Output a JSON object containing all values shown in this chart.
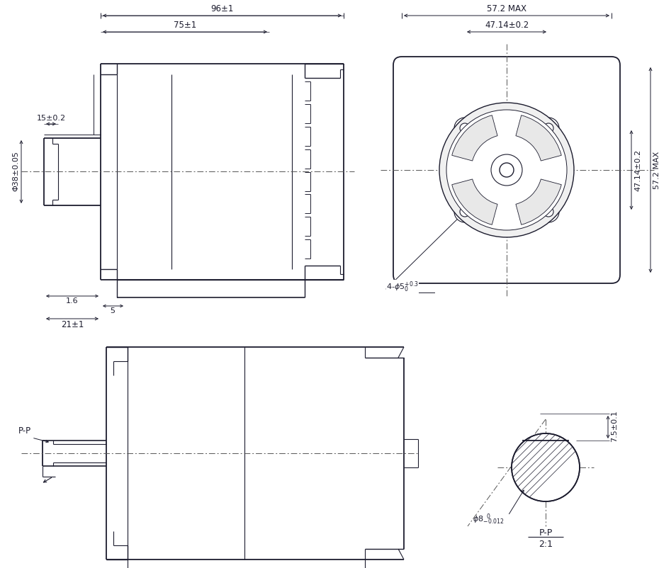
{
  "bg_color": "#ffffff",
  "lc": "#1c1c2e",
  "dc": "#1c1c2e",
  "figsize": [
    9.3,
    8.02
  ],
  "dpi": 100,
  "annotations": {
    "dim_96": "96±1",
    "dim_75": "75±1",
    "dim_15": "15±0.2",
    "dim_38": "Φ38±0.05",
    "dim_1_6": "1.6",
    "dim_5": "5",
    "dim_21": "21±1",
    "dim_57_2_max_h": "57.2 MAX",
    "dim_47_14_h": "47.14±0.2",
    "dim_47_14_v": "47.14±0.2",
    "dim_57_2_max_v": "57.2 MAX",
    "dim_4holes": "4-Φ5⁺⁰³⁰",
    "dim_pp_label": "P-P",
    "dim_pp_ratio": "P-P\n2:1",
    "dim_phi8": "Φ8₀⁻⁰·⁰¹²",
    "dim_7_5": "7.5±0.1"
  }
}
